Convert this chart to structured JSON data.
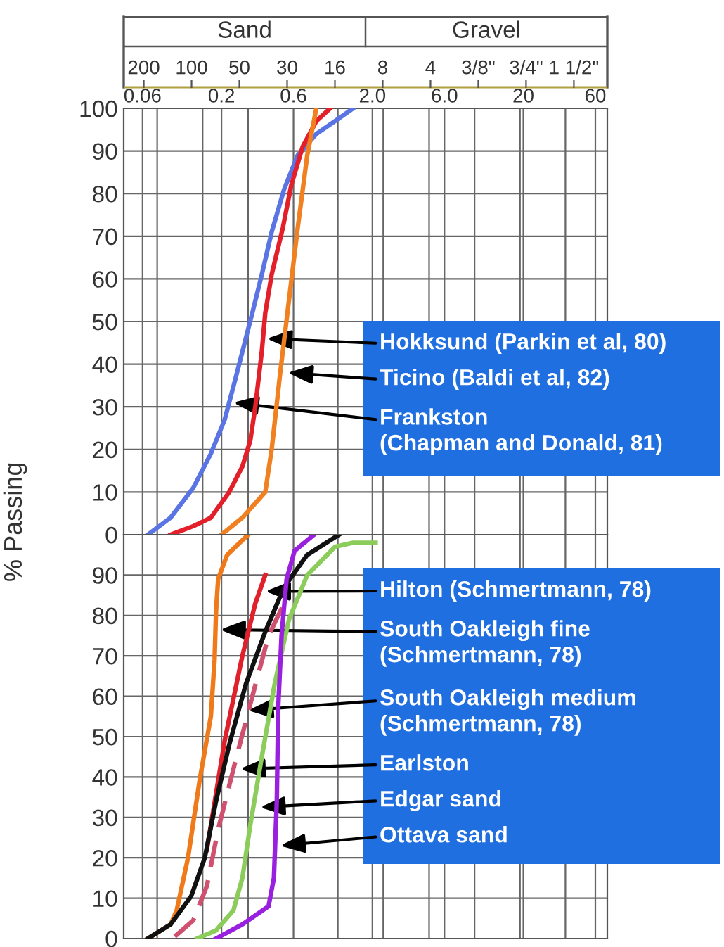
{
  "chart_data": [
    {
      "type": "other",
      "categories": [
        "200",
        "100",
        "50",
        "30",
        "16",
        "8",
        "4",
        "3/8\"",
        "3/4\"",
        "1 1/2\""
      ],
      "annotations": [
        "Sand",
        "Gravel"
      ]
    },
    {
      "type": "line",
      "ylabel": "% Passing",
      "log": "x",
      "grid": true,
      "xlim": [
        0.045,
        72
      ],
      "xticks": [
        0.06,
        0.2,
        0.6,
        {
          "value": 2,
          "label": "2.0"
        },
        {
          "value": 6,
          "label": "6.0"
        },
        20,
        60,
        {
          "value": 0.075,
          "label": null
        },
        {
          "value": 0.15,
          "label": null
        },
        {
          "value": 0.3,
          "label": null
        },
        {
          "value": 1.18,
          "label": null
        },
        {
          "value": 2.36,
          "label": null
        },
        {
          "value": 4.75,
          "label": null
        },
        {
          "value": 9.5,
          "label": null
        },
        {
          "value": 19,
          "label": null
        },
        {
          "value": 38,
          "label": null
        }
      ],
      "ylim": [
        0,
        100
      ],
      "yticks": [
        0,
        10,
        20,
        30,
        40,
        50,
        60,
        70,
        80,
        90,
        100
      ],
      "series": [
        {
          "color": "#5b74e4",
          "x": [
            0.065,
            0.092,
            0.13,
            0.17,
            0.21,
            0.245,
            0.28,
            0.32,
            0.37,
            0.43,
            0.52,
            0.64,
            0.85,
            1.13,
            1.49
          ],
          "values": [
            0,
            4,
            11,
            19,
            27,
            36,
            44,
            52,
            61,
            71,
            81,
            89,
            94,
            97,
            100
          ]
        },
        {
          "color": "#e3202a",
          "x": [
            0.092,
            0.13,
            0.17,
            0.225,
            0.275,
            0.31,
            0.335,
            0.37,
            0.39,
            0.43,
            0.51,
            0.58,
            0.69,
            0.85,
            1.05
          ],
          "values": [
            0,
            2,
            4,
            10,
            16,
            22,
            30,
            43,
            52,
            61,
            72,
            82,
            91,
            97,
            100
          ]
        },
        {
          "color": "#f08020",
          "x": [
            0.2,
            0.275,
            0.39,
            0.43,
            0.49,
            0.56,
            0.64,
            0.74,
            0.85
          ],
          "values": [
            0,
            4,
            10,
            20,
            38,
            55,
            72,
            89,
            100
          ]
        }
      ],
      "annotations": [
        {
          "text": "Hokksund (Parkin et al, 80)",
          "x": 0.4,
          "y": 46
        },
        {
          "text": "Ticino (Baldi et al, 82)",
          "x": 0.55,
          "y": 38
        },
        {
          "text": "Frankston\n(Chapman and Donald, 81)",
          "x": 0.24,
          "y": 31
        }
      ]
    },
    {
      "type": "line",
      "log": "x",
      "grid": true,
      "tick_labels": "y",
      "xlim": [
        0.045,
        72
      ],
      "xticks": [
        {
          "value": 0.06,
          "label": null
        },
        {
          "value": 0.2,
          "label": null
        },
        {
          "value": 0.6,
          "label": null
        },
        {
          "value": 2,
          "label": null
        },
        {
          "value": 6,
          "label": null
        },
        {
          "value": 20,
          "label": null
        },
        {
          "value": 60,
          "label": null
        },
        {
          "value": 0.075,
          "label": null
        },
        {
          "value": 0.15,
          "label": null
        },
        {
          "value": 0.3,
          "label": null
        },
        {
          "value": 1.18,
          "label": null
        },
        {
          "value": 2.36,
          "label": null
        },
        {
          "value": 4.75,
          "label": null
        },
        {
          "value": 9.5,
          "label": null
        },
        {
          "value": 19,
          "label": null
        },
        {
          "value": 38,
          "label": null
        }
      ],
      "ylim": [
        0,
        100
      ],
      "yticks": [
        0,
        10,
        20,
        30,
        40,
        50,
        60,
        70,
        80,
        90
      ],
      "series": [
        {
          "color": "#f07a1a",
          "x": [
            0.065,
            0.092,
            0.101,
            0.12,
            0.143,
            0.17,
            0.18,
            0.184,
            0.19,
            0.218,
            0.3
          ],
          "values": [
            0,
            3.5,
            7,
            20,
            39,
            55,
            69,
            81,
            89,
            95,
            100
          ]
        },
        {
          "color": "#e0202a",
          "x": [
            0.16,
            0.21,
            0.275,
            0.335,
            0.39
          ],
          "values": [
            22,
            49,
            70,
            83,
            90
          ]
        },
        {
          "color": "#d05070",
          "line_style": "dashed",
          "x": [
            0.098,
            0.13,
            0.16,
            0.19,
            0.24,
            0.31,
            0.41,
            0.52
          ],
          "values": [
            0.5,
            4.5,
            13,
            27,
            42,
            58,
            75,
            83
          ]
        },
        {
          "color": "#111111",
          "x": [
            0.065,
            0.092,
            0.126,
            0.155,
            0.184,
            0.225,
            0.29,
            0.39,
            0.52,
            0.74,
            1.2
          ],
          "values": [
            0,
            3.5,
            10.5,
            20,
            34,
            48,
            63,
            76,
            87,
            95,
            100
          ]
        },
        {
          "color": "#8ccc5a",
          "x": [
            0.138,
            0.184,
            0.24,
            0.275,
            0.31,
            0.37,
            0.45,
            0.56,
            0.74,
            1.13,
            1.49,
            2.1
          ],
          "values": [
            0,
            2,
            7,
            15,
            28,
            45,
            63,
            79,
            90,
            97,
            98,
            98
          ]
        },
        {
          "color": "#9a20e0",
          "x": [
            0.184,
            0.275,
            0.41,
            0.445,
            0.465,
            0.475,
            0.5,
            0.54,
            0.61,
            0.82
          ],
          "values": [
            0,
            3.5,
            8,
            15,
            34,
            57,
            75,
            89,
            96,
            100
          ]
        }
      ],
      "annotations": [
        {
          "text": "Hilton (Schmertmann, 78)",
          "x": 0.39,
          "y": 86
        },
        {
          "text": "South Oakleigh fine\n(Schmertmann, 78)",
          "x": 0.196,
          "y": 76.5
        },
        {
          "text": "South Oakleigh medium\n(Schmertmann, 78)",
          "x": 0.3,
          "y": 56.5
        },
        {
          "text": "Earlston",
          "x": 0.265,
          "y": 42
        },
        {
          "text": "Edgar sand",
          "x": 0.36,
          "y": 32.5
        },
        {
          "text": "Ottava sand",
          "x": 0.49,
          "y": 23
        }
      ]
    }
  ]
}
